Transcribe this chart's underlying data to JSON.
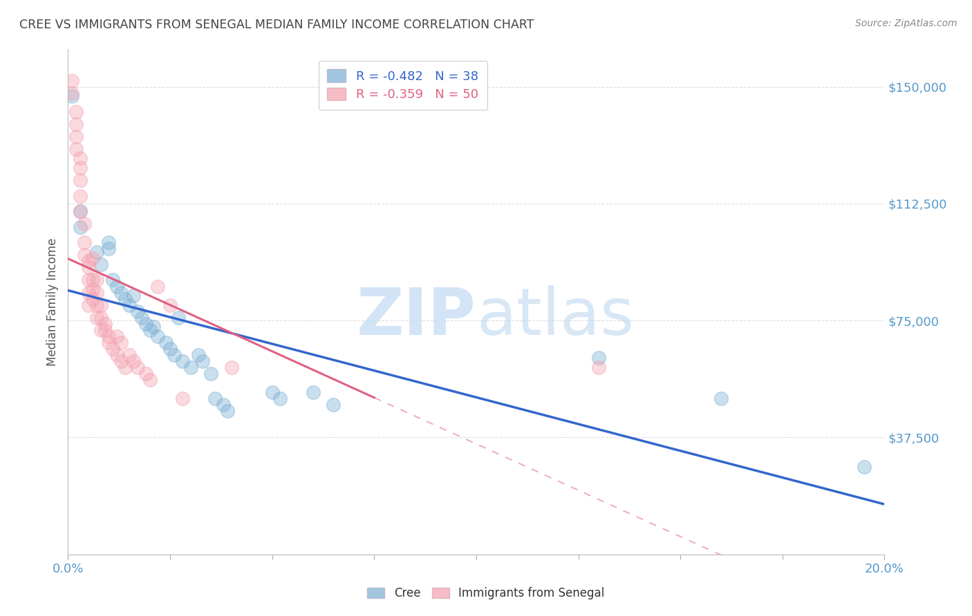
{
  "title": "CREE VS IMMIGRANTS FROM SENEGAL MEDIAN FAMILY INCOME CORRELATION CHART",
  "source": "Source: ZipAtlas.com",
  "ylabel": "Median Family Income",
  "yticks": [
    37500,
    75000,
    112500,
    150000
  ],
  "ytick_labels": [
    "$37,500",
    "$75,000",
    "$112,500",
    "$150,000"
  ],
  "xmin": 0.0,
  "xmax": 0.2,
  "ymin": 0,
  "ymax": 162000,
  "watermark_zip": "ZIP",
  "watermark_atlas": "atlas",
  "cree_r": -0.482,
  "cree_n": 38,
  "senegal_r": -0.359,
  "senegal_n": 50,
  "cree_color": "#7bafd4",
  "senegal_color": "#f4a0b0",
  "cree_line_color": "#3366cc",
  "senegal_line_color": "#e06080",
  "grid_color": "#dddddd",
  "background_color": "#ffffff",
  "title_color": "#444444",
  "tick_color": "#5599cc",
  "cree_points": [
    [
      0.001,
      147000
    ],
    [
      0.003,
      110000
    ],
    [
      0.003,
      105000
    ],
    [
      0.007,
      97000
    ],
    [
      0.008,
      93000
    ],
    [
      0.01,
      100000
    ],
    [
      0.01,
      98000
    ],
    [
      0.011,
      88000
    ],
    [
      0.012,
      86000
    ],
    [
      0.013,
      84000
    ],
    [
      0.014,
      82000
    ],
    [
      0.015,
      80000
    ],
    [
      0.016,
      83000
    ],
    [
      0.017,
      78000
    ],
    [
      0.018,
      76000
    ],
    [
      0.019,
      74000
    ],
    [
      0.02,
      72000
    ],
    [
      0.021,
      73000
    ],
    [
      0.022,
      70000
    ],
    [
      0.024,
      68000
    ],
    [
      0.025,
      66000
    ],
    [
      0.026,
      64000
    ],
    [
      0.027,
      76000
    ],
    [
      0.028,
      62000
    ],
    [
      0.03,
      60000
    ],
    [
      0.032,
      64000
    ],
    [
      0.033,
      62000
    ],
    [
      0.035,
      58000
    ],
    [
      0.036,
      50000
    ],
    [
      0.038,
      48000
    ],
    [
      0.039,
      46000
    ],
    [
      0.05,
      52000
    ],
    [
      0.052,
      50000
    ],
    [
      0.06,
      52000
    ],
    [
      0.065,
      48000
    ],
    [
      0.13,
      63000
    ],
    [
      0.16,
      50000
    ],
    [
      0.195,
      28000
    ]
  ],
  "senegal_points": [
    [
      0.001,
      152000
    ],
    [
      0.001,
      148000
    ],
    [
      0.002,
      142000
    ],
    [
      0.002,
      138000
    ],
    [
      0.002,
      134000
    ],
    [
      0.002,
      130000
    ],
    [
      0.003,
      127000
    ],
    [
      0.003,
      124000
    ],
    [
      0.003,
      120000
    ],
    [
      0.003,
      115000
    ],
    [
      0.003,
      110000
    ],
    [
      0.004,
      106000
    ],
    [
      0.004,
      100000
    ],
    [
      0.004,
      96000
    ],
    [
      0.005,
      92000
    ],
    [
      0.005,
      88000
    ],
    [
      0.005,
      84000
    ],
    [
      0.005,
      80000
    ],
    [
      0.005,
      94000
    ],
    [
      0.006,
      95000
    ],
    [
      0.006,
      88000
    ],
    [
      0.006,
      85000
    ],
    [
      0.006,
      82000
    ],
    [
      0.007,
      88000
    ],
    [
      0.007,
      84000
    ],
    [
      0.007,
      80000
    ],
    [
      0.007,
      76000
    ],
    [
      0.008,
      80000
    ],
    [
      0.008,
      76000
    ],
    [
      0.008,
      72000
    ],
    [
      0.009,
      74000
    ],
    [
      0.009,
      72000
    ],
    [
      0.01,
      70000
    ],
    [
      0.01,
      68000
    ],
    [
      0.011,
      66000
    ],
    [
      0.012,
      70000
    ],
    [
      0.012,
      64000
    ],
    [
      0.013,
      68000
    ],
    [
      0.013,
      62000
    ],
    [
      0.014,
      60000
    ],
    [
      0.015,
      64000
    ],
    [
      0.016,
      62000
    ],
    [
      0.017,
      60000
    ],
    [
      0.019,
      58000
    ],
    [
      0.02,
      56000
    ],
    [
      0.022,
      86000
    ],
    [
      0.025,
      80000
    ],
    [
      0.028,
      50000
    ],
    [
      0.04,
      60000
    ],
    [
      0.13,
      60000
    ]
  ]
}
